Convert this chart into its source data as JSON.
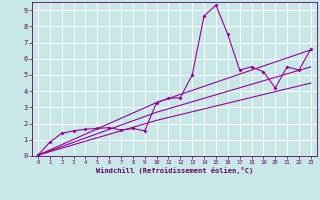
{
  "bg_color": "#c8e8e8",
  "grid_color": "#aacccc",
  "line_color": "#990099",
  "marker": "D",
  "marker_size": 2.0,
  "xlabel": "Windchill (Refroidissement éolien,°C)",
  "xlabel_color": "#660066",
  "tick_color": "#660066",
  "xlim": [
    -0.5,
    23.5
  ],
  "ylim": [
    0,
    9.5
  ],
  "xticks": [
    0,
    1,
    2,
    3,
    4,
    5,
    6,
    7,
    8,
    9,
    10,
    11,
    12,
    13,
    14,
    15,
    16,
    17,
    18,
    19,
    20,
    21,
    22,
    23
  ],
  "yticks": [
    0,
    1,
    2,
    3,
    4,
    5,
    6,
    7,
    8,
    9
  ],
  "curves": [
    {
      "x": [
        0,
        1,
        2,
        3,
        4,
        5,
        6,
        7,
        8,
        9,
        10,
        11,
        12,
        13,
        14,
        15,
        16,
        17,
        18,
        19,
        20,
        21,
        22,
        23
      ],
      "y": [
        0.05,
        0.85,
        1.4,
        1.55,
        1.65,
        1.7,
        1.75,
        1.6,
        1.7,
        1.55,
        3.3,
        3.55,
        3.6,
        5.0,
        8.65,
        9.3,
        7.5,
        5.3,
        5.5,
        5.2,
        4.2,
        5.5,
        5.3,
        6.6
      ]
    },
    {
      "x": [
        0,
        10,
        23
      ],
      "y": [
        0.05,
        3.3,
        6.55
      ]
    },
    {
      "x": [
        0,
        10,
        23
      ],
      "y": [
        0.05,
        2.7,
        5.5
      ]
    },
    {
      "x": [
        0,
        10,
        23
      ],
      "y": [
        0.05,
        2.2,
        4.5
      ]
    }
  ]
}
